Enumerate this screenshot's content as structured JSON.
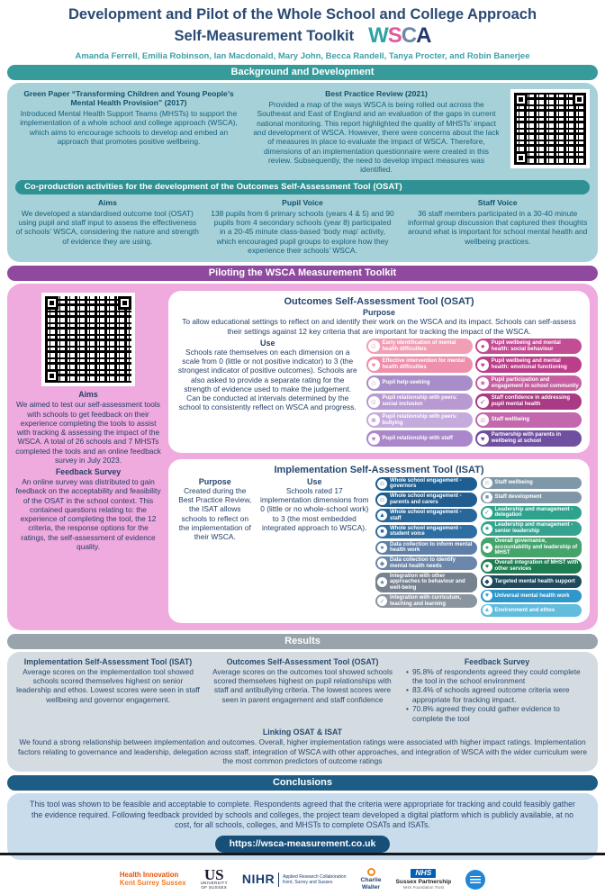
{
  "colors": {
    "teal_header": "#389b9b",
    "coproduction_header": "#2f9193",
    "purple_header": "#8f4a9f",
    "pink_panel": "#efaade",
    "light_blue_panel": "#a7d1d9",
    "results_header": "#98a3ab",
    "results_panel": "#d4dce1",
    "conclusions_header": "#1d5c85",
    "conclusions_panel": "#c9dcec",
    "url_button": "#174f79",
    "title_text": "#2b4a73",
    "authors_text": "#3f9fa8"
  },
  "header": {
    "title_line1": "Development and Pilot of the Whole School and College Approach",
    "title_line2": "Self-Measurement Toolkit",
    "logo": [
      {
        "char": "W",
        "color": "#2ea3a5"
      },
      {
        "char": "S",
        "color": "#e05a9b"
      },
      {
        "char": "C",
        "color": "#6d87a8"
      },
      {
        "char": "A",
        "color": "#203a6d"
      }
    ],
    "authors": "Amanda Ferrell, Emilia Robinson, Ian Macdonald, Mary John, Becca Randell, Tanya Procter, and Robin Banerjee"
  },
  "background": {
    "header": "Background and Development",
    "green_paper": {
      "title": "Green Paper “Transforming Children and Young People’s Mental Health Provision” (2017)",
      "body": "Introduced Mental Health Support Teams (MHSTs) to support the implementation of a whole school and college approach (WSCA), which aims to encourage schools to develop and embed an approach that promotes positive wellbeing."
    },
    "best_practice": {
      "title": "Best Practice Review (2021)",
      "body": "Provided a map of the ways WSCA is being rolled out across the Southeast and East of England and an evaluation of the gaps in current national monitoring. This report highlighted the quality of MHSTs’ impact and development of WSCA. However, there were concerns about the lack of measures in place to evaluate the impact of WSCA. Therefore, dimensions of an implementation questionnaire were created in this review. Subsequently, the need to develop impact measures was identified."
    },
    "coproduction": {
      "header": "Co-production activities for the development of the Outcomes Self-Assessment Tool (OSAT)",
      "aims": {
        "title": "Aims",
        "body": "We developed a standardised outcome tool (OSAT) using pupil and staff input to assess the effectiveness of schools’ WSCA, considering the nature and strength of evidence they are using."
      },
      "pupil_voice": {
        "title": "Pupil Voice",
        "body": "138 pupils from 6 primary schools (years 4 & 5) and 90 pupils from 4 secondary schools (year 8) participated in a 20-45 minute class-based ‘body map’ activity, which encouraged pupil groups to explore how they experience their schools’ WSCA."
      },
      "staff_voice": {
        "title": "Staff Voice",
        "body": "36 staff members participated in a 30-40 minute informal group discussion that captured their thoughts around what is important for school mental health and wellbeing practices."
      }
    }
  },
  "piloting": {
    "header": "Piloting the WSCA Measurement Toolkit",
    "aims": {
      "title": "Aims",
      "body": "We aimed to test our self-assessment tools with schools to get feedback on their experience completing the tools to assist with tracking & assessing the impact of the WSCA. A total of 26 schools and 7 MHSTs completed the tools and an online feedback survey in July 2023."
    },
    "feedback_survey": {
      "title": "Feedback Survey",
      "body": "An online survey was distributed to gain feedback on the acceptability and feasibility of the OSAT in the school context. This contained questions relating to: the experience of completing the tool, the 12 criteria, the response options for the ratings, the self-assessment of evidence quality."
    },
    "osat": {
      "title": "Outcomes Self-Assessment Tool (OSAT)",
      "purpose_label": "Purpose",
      "purpose": "To allow educational settings to reflect on and identify their work on the WSCA and its impact. Schools can self-assess their settings against 12 key criteria that are important for tracking the impact of the WSCA.",
      "use_label": "Use",
      "use": "Schools rate themselves on each dimension on a scale from 0 (little or not positive indicator) to 3 (the strongest indicator of positive outcomes). Schools are also asked to provide a separate rating for the strength of evidence used to make the judgement. Can be conducted at intervals determined by the school to consistently reflect on WSCA and progress.",
      "criteria_left": [
        {
          "label": "Early identification of mental health difficulties",
          "color": "#f09fb5",
          "glyph": "☺"
        },
        {
          "label": "Effective intervention for mental health difficulties",
          "color": "#ee8fac",
          "glyph": "♥"
        },
        {
          "label": "Pupil help-seeking",
          "color": "#a78ec9",
          "glyph": "☆"
        },
        {
          "label": "Pupil relationship with peers: social inclusion",
          "color": "#b899d2",
          "glyph": "☺"
        },
        {
          "label": "Pupil relationship with peers: bullying",
          "color": "#c5abdc",
          "glyph": "☻"
        },
        {
          "label": "Pupil relationship with staff",
          "color": "#aa86cb",
          "glyph": "♥"
        }
      ],
      "criteria_right": [
        {
          "label": "Pupil wellbeing and mental health: social behaviour",
          "color": "#c24d93",
          "glyph": "●"
        },
        {
          "label": "Pupil wellbeing and mental health: emotional functioning",
          "color": "#ba3e89",
          "glyph": "♥"
        },
        {
          "label": "Pupil participation and engagement in school community",
          "color": "#c75ea1",
          "glyph": "★"
        },
        {
          "label": "Staff confidence in addressing pupil mental health",
          "color": "#a93a85",
          "glyph": "✓"
        },
        {
          "label": "Staff wellbeing",
          "color": "#c368ac",
          "glyph": "☺"
        },
        {
          "label": "Partnership with parents in wellbeing at school",
          "color": "#6f4f9f",
          "glyph": "♥"
        }
      ]
    },
    "isat": {
      "title": "Implementation Self-Assessment Tool (ISAT)",
      "purpose_label": "Purpose",
      "purpose": "Created during the Best Practice Review, the ISAT allows schools to reflect on the implementation of their WSCA.",
      "use_label": "Use",
      "use": "Schools rated 17 implementation dimensions from 0 (little or no whole-school work) to 3 (the most embedded integrated approach to WSCA).",
      "dimensions_left": [
        {
          "label": "Whole school engagement - governors",
          "color": "#1d5f92",
          "glyph": "☺"
        },
        {
          "label": "Whole school engagement - parents and carers",
          "color": "#215e8f",
          "glyph": "☺"
        },
        {
          "label": "Whole school engagement - staff",
          "color": "#27679b",
          "glyph": "▲"
        },
        {
          "label": "Whole school engagement - student voice",
          "color": "#2e6fa3",
          "glyph": "■"
        },
        {
          "label": "Data collection to inform mental health work",
          "color": "#5f7fa8",
          "glyph": "●"
        },
        {
          "label": "Data collection to identify mental health needs",
          "color": "#6b87ac",
          "glyph": "◆"
        },
        {
          "label": "Integration with other approaches to behaviour and well-being",
          "color": "#76828f",
          "glyph": "★"
        },
        {
          "label": "Integration with curriculum, teaching and learning",
          "color": "#8b95a0",
          "glyph": "✓"
        }
      ],
      "dimensions_right": [
        {
          "label": "Staff wellbeing",
          "color": "#7e97a9",
          "glyph": "☺"
        },
        {
          "label": "Staff development",
          "color": "#8096a6",
          "glyph": "■"
        },
        {
          "label": "Leadership and management - delegation",
          "color": "#2da38d",
          "glyph": "✓"
        },
        {
          "label": "Leadership and management - senior leadership",
          "color": "#35a38f",
          "glyph": "★"
        },
        {
          "label": "Overall governance, accountability and leadership of MHST",
          "color": "#45a36c",
          "glyph": "●"
        },
        {
          "label": "Overall integration of MHST with other services",
          "color": "#1e7e52",
          "glyph": "♥"
        },
        {
          "label": "Targeted mental health support",
          "color": "#1d4a5c",
          "glyph": "◆"
        },
        {
          "label": "Universal mental health work",
          "color": "#2f97cb",
          "glyph": "♥"
        },
        {
          "label": "Environment and ethos",
          "color": "#62bcdc",
          "glyph": "▲"
        }
      ]
    }
  },
  "results": {
    "header": "Results",
    "isat": {
      "title": "Implementation Self-Assessment Tool (ISAT)",
      "body": "Average scores on the implementation tool showed schools scored themselves highest on senior leadership and ethos. Lowest scores were seen in staff wellbeing and governor engagement."
    },
    "osat": {
      "title": "Outcomes Self-Assessment Tool (OSAT)",
      "body": "Average scores on the outcomes tool showed schools scored themselves highest on pupil relationships with staff and antibullying criteria. The lowest scores were seen in parent engagement and staff confidence"
    },
    "feedback": {
      "title": "Feedback Survey",
      "bullets": [
        "95.8% of respondents agreed they could complete the tool in the school environment",
        "83.4% of schools agreed outcome criteria were appropriate for tracking impact.",
        "70.8% agreed they could gather evidence to complete the tool"
      ]
    },
    "linking": {
      "title": "Linking OSAT & ISAT",
      "body": "We found a strong relationship between implementation and outcomes. Overall, higher implementation ratings were associated with higher impact ratings. Implementation factors relating to governance and leadership, delegation across staff, integration of WSCA with other approaches, and integration of WSCA with the wider curriculum were the most common predictors of outcome ratings"
    }
  },
  "conclusions": {
    "header": "Conclusions",
    "body": "This tool was shown to be feasible and acceptable to complete. Respondents agreed that the criteria were appropriate for tracking and could feasibly gather the evidence required. Following feedback provided by schools and colleges, the project team developed a digital platform which is publicly available, at no cost, for all schools, colleges, and MHSTs to complete OSATs and ISATs.",
    "url": "https://wsca-measurement.co.uk"
  },
  "footer": {
    "health_innovation": {
      "line1": "Health Innovation",
      "line2": "Kent Surrey Sussex"
    },
    "university_of_sussex": {
      "initials": "US",
      "line1": "UNIVERSITY",
      "line2": "OF SUSSEX"
    },
    "nihr": {
      "name": "NIHR",
      "line1": "Applied Research Collaboration",
      "line2": "Kent, Surrey and Sussex"
    },
    "charlie_waller": {
      "line1": "Charlie",
      "line2": "Waller"
    },
    "nhs": {
      "name": "NHS",
      "line1": "Sussex Partnership",
      "line2": "NHS Foundation Trust"
    }
  }
}
